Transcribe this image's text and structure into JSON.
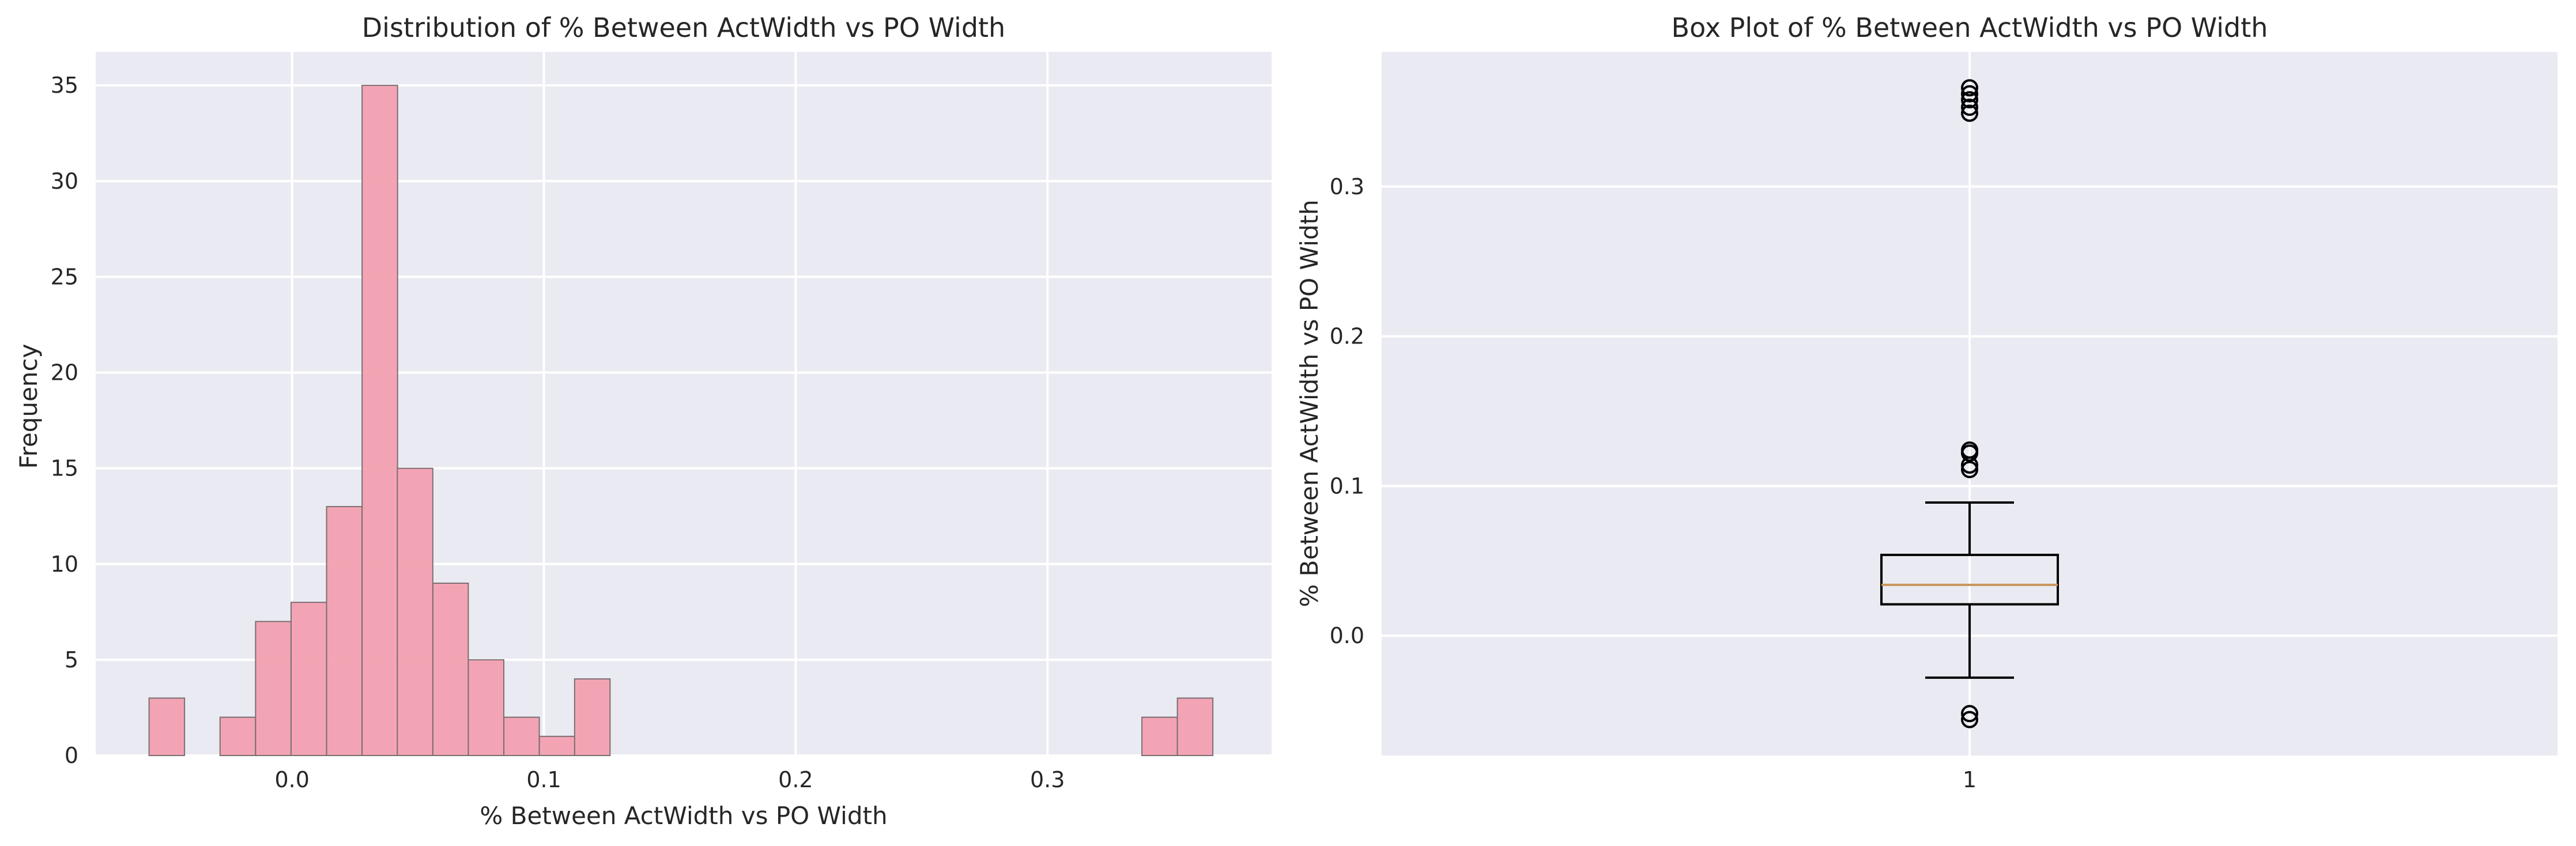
{
  "chart_data": [
    {
      "type": "bar",
      "title": "Distribution of % Between ActWidth vs PO Width",
      "xlabel": "% Between ActWidth vs PO Width",
      "ylabel": "Frequency",
      "xlim": [
        -0.078,
        0.389
      ],
      "ylim": [
        0,
        36.75
      ],
      "xticks": [
        0.0,
        0.1,
        0.2,
        0.3
      ],
      "xtick_labels": [
        "0.0",
        "0.1",
        "0.2",
        "0.3"
      ],
      "yticks": [
        0,
        5,
        10,
        15,
        20,
        25,
        30,
        35
      ],
      "ytick_labels": [
        "0",
        "5",
        "10",
        "15",
        "20",
        "25",
        "30",
        "35"
      ],
      "grid": true,
      "bar_color": "#f3a0b0",
      "bin_width": 0.01408,
      "bins": [
        {
          "x0": -0.0568,
          "count": 3
        },
        {
          "x0": -0.0286,
          "count": 2
        },
        {
          "x0": -0.0145,
          "count": 7
        },
        {
          "x0": -0.0004,
          "count": 8
        },
        {
          "x0": 0.0137,
          "count": 13
        },
        {
          "x0": 0.0278,
          "count": 35
        },
        {
          "x0": 0.0418,
          "count": 15
        },
        {
          "x0": 0.0559,
          "count": 9
        },
        {
          "x0": 0.07,
          "count": 5
        },
        {
          "x0": 0.0841,
          "count": 2
        },
        {
          "x0": 0.0982,
          "count": 1
        },
        {
          "x0": 0.1122,
          "count": 4
        },
        {
          "x0": 0.3375,
          "count": 2
        },
        {
          "x0": 0.3516,
          "count": 3
        }
      ]
    },
    {
      "type": "box",
      "title": "Box Plot of % Between ActWidth vs PO Width",
      "xlabel": "",
      "ylabel": "% Between ActWidth vs PO Width",
      "ylim": [
        -0.08,
        0.39
      ],
      "xticks": [
        1
      ],
      "xtick_labels": [
        "1"
      ],
      "yticks": [
        0.0,
        0.1,
        0.2,
        0.3
      ],
      "ytick_labels": [
        "0.0",
        "0.1",
        "0.2",
        "0.3"
      ],
      "grid": true,
      "median_color": "#c8955a",
      "box": {
        "whisker_low": -0.028,
        "q1": 0.021,
        "median": 0.034,
        "q3": 0.054,
        "whisker_high": 0.089
      },
      "outliers": [
        -0.056,
        -0.052,
        0.111,
        0.114,
        0.122,
        0.124,
        0.349,
        0.353,
        0.358,
        0.362,
        0.366
      ]
    }
  ]
}
